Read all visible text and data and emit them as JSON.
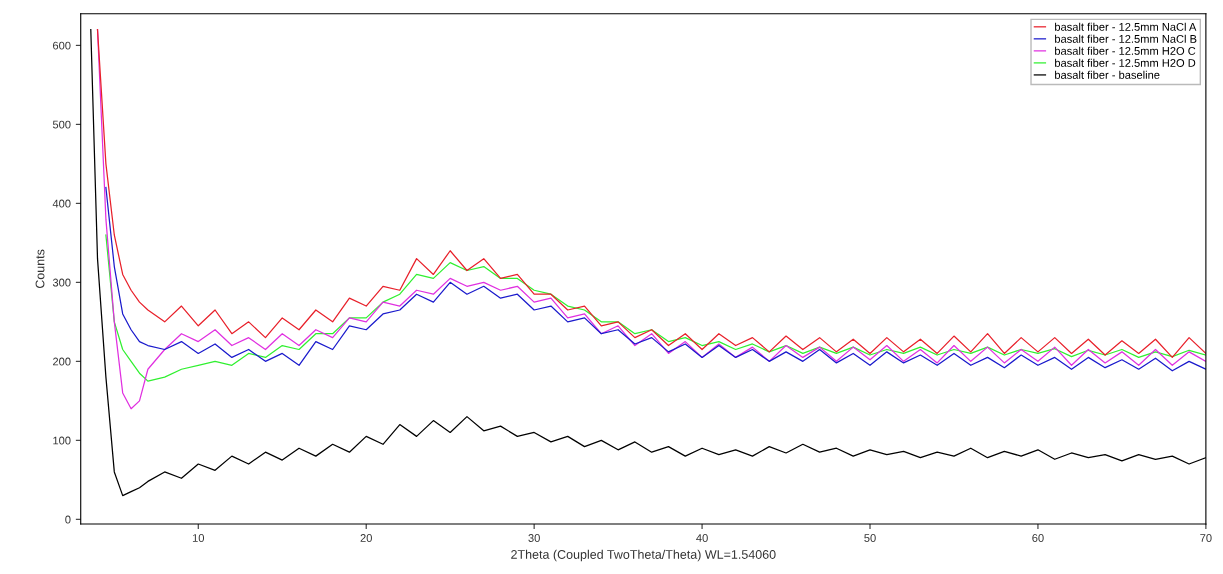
{
  "chart_data": {
    "type": "line",
    "xlabel": "2Theta (Coupled TwoTheta/Theta) WL=1.54060",
    "ylabel": "Counts",
    "x": [
      3.6,
      4,
      4.5,
      5,
      5.5,
      6,
      6.5,
      7,
      8,
      9,
      10,
      11,
      12,
      13,
      14,
      15,
      16,
      17,
      18,
      19,
      20,
      21,
      22,
      23,
      24,
      25,
      26,
      27,
      28,
      29,
      30,
      31,
      32,
      33,
      34,
      35,
      36,
      37,
      38,
      39,
      40,
      41,
      42,
      43,
      44,
      45,
      46,
      47,
      48,
      49,
      50,
      51,
      52,
      53,
      54,
      55,
      56,
      57,
      58,
      59,
      60,
      61,
      62,
      63,
      64,
      65,
      66,
      67,
      68,
      69,
      70
    ],
    "series": [
      {
        "name": "basalt fiber - 12.5mm NaCl A",
        "color": "#e8202a",
        "values": [
          null,
          620,
          450,
          360,
          310,
          290,
          275,
          265,
          250,
          270,
          245,
          265,
          235,
          250,
          230,
          255,
          240,
          265,
          250,
          280,
          270,
          295,
          290,
          330,
          310,
          340,
          315,
          330,
          305,
          310,
          285,
          285,
          265,
          270,
          245,
          250,
          230,
          240,
          220,
          235,
          215,
          235,
          220,
          230,
          212,
          232,
          215,
          230,
          212,
          228,
          210,
          230,
          212,
          228,
          210,
          232,
          212,
          235,
          210,
          230,
          212,
          230,
          210,
          228,
          208,
          226,
          210,
          228,
          205,
          230,
          210
        ]
      },
      {
        "name": "basalt fiber - 12.5mm NaCl B",
        "color": "#1a1acc",
        "values": [
          null,
          null,
          420,
          320,
          260,
          240,
          225,
          220,
          215,
          225,
          210,
          222,
          205,
          215,
          200,
          210,
          195,
          225,
          215,
          245,
          240,
          260,
          265,
          285,
          275,
          300,
          285,
          295,
          280,
          285,
          265,
          270,
          250,
          255,
          235,
          240,
          222,
          230,
          212,
          222,
          205,
          220,
          205,
          215,
          200,
          212,
          200,
          215,
          198,
          210,
          195,
          212,
          198,
          208,
          195,
          210,
          195,
          205,
          192,
          208,
          195,
          205,
          190,
          205,
          192,
          202,
          190,
          204,
          188,
          200,
          190
        ]
      },
      {
        "name": "basalt fiber - 12.5mm H2O C",
        "color": "#e030e0",
        "values": [
          null,
          620,
          380,
          250,
          160,
          140,
          150,
          190,
          215,
          235,
          225,
          240,
          220,
          230,
          215,
          235,
          220,
          240,
          230,
          255,
          250,
          275,
          270,
          290,
          285,
          305,
          295,
          300,
          290,
          295,
          275,
          280,
          255,
          260,
          235,
          245,
          220,
          235,
          210,
          225,
          205,
          222,
          205,
          218,
          200,
          220,
          205,
          218,
          200,
          218,
          202,
          220,
          200,
          215,
          198,
          220,
          200,
          218,
          198,
          215,
          200,
          218,
          195,
          215,
          198,
          212,
          195,
          215,
          195,
          212,
          200
        ]
      },
      {
        "name": "basalt fiber - 12.5mm H2O D",
        "color": "#30f030",
        "values": [
          null,
          null,
          360,
          250,
          215,
          200,
          185,
          175,
          180,
          190,
          195,
          200,
          195,
          210,
          205,
          220,
          215,
          235,
          235,
          255,
          255,
          275,
          285,
          310,
          305,
          325,
          315,
          320,
          305,
          305,
          290,
          285,
          270,
          265,
          250,
          250,
          235,
          240,
          225,
          230,
          220,
          225,
          215,
          222,
          212,
          220,
          210,
          218,
          210,
          218,
          208,
          215,
          210,
          218,
          208,
          215,
          210,
          218,
          208,
          215,
          210,
          216,
          206,
          214,
          208,
          215,
          205,
          212,
          206,
          214,
          208
        ]
      },
      {
        "name": "basalt fiber - baseline",
        "color": "#000000",
        "values": [
          620,
          330,
          180,
          60,
          30,
          35,
          40,
          48,
          60,
          52,
          70,
          62,
          80,
          70,
          85,
          75,
          90,
          80,
          95,
          85,
          105,
          95,
          120,
          105,
          125,
          110,
          130,
          112,
          118,
          105,
          110,
          98,
          105,
          92,
          100,
          88,
          98,
          85,
          92,
          80,
          90,
          82,
          88,
          80,
          92,
          84,
          95,
          85,
          90,
          80,
          88,
          82,
          86,
          78,
          85,
          80,
          90,
          78,
          86,
          80,
          88,
          76,
          84,
          78,
          82,
          74,
          82,
          76,
          80,
          70,
          78
        ]
      }
    ],
    "xlim": [
      3,
      70
    ],
    "ylim": [
      -6,
      640
    ],
    "xticks": [
      10,
      20,
      30,
      40,
      50,
      60,
      70
    ],
    "yticks": [
      0,
      100,
      200,
      300,
      400,
      500,
      600
    ],
    "grid": false,
    "legend": "top right"
  }
}
